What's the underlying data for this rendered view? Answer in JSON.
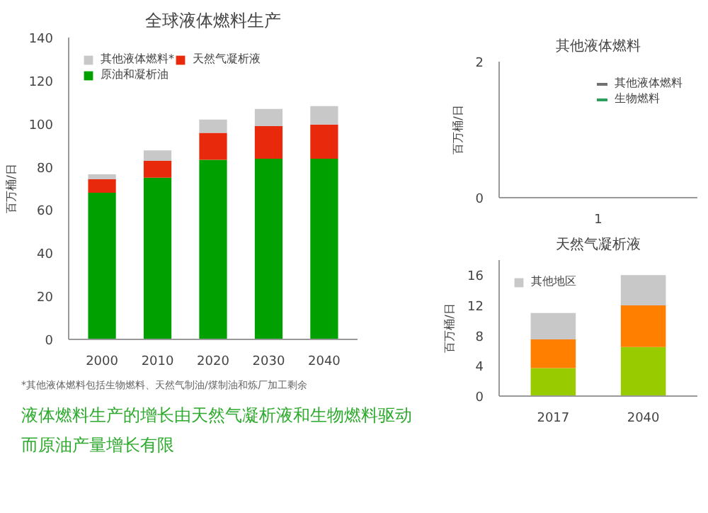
{
  "chart_data": [
    {
      "type": "bar",
      "stacked": true,
      "title": "全球液体燃料生产",
      "ylabel": "百万桶/日",
      "categories": [
        "2000",
        "2010",
        "2020",
        "2030",
        "2040"
      ],
      "series": [
        {
          "name": "原油和凝析油",
          "color": "#00a000",
          "values": [
            68,
            75,
            83.3,
            83.8,
            83.8
          ]
        },
        {
          "name": "天然气凝析液",
          "color": "#e8290b",
          "values": [
            6.3,
            7.8,
            12.5,
            15.1,
            15.9
          ]
        },
        {
          "name": "其他液体燃料*",
          "color": "#c8c8c8",
          "values": [
            2.3,
            4.9,
            6.2,
            8,
            8.5
          ]
        }
      ],
      "ylim": [
        0,
        140
      ],
      "yticks": [
        0,
        20,
        40,
        60,
        80,
        100,
        120,
        140
      ],
      "grid": false,
      "legend": "top left",
      "annotations": [
        "*其他液体燃料包括生物燃料、天然气制油/煤制油和炼厂加工剩余",
        "液体燃料生产的增长由天然气凝析液和生物燃料驱动",
        "而原油产量增长有限"
      ]
    },
    {
      "type": "line",
      "title": "其他液体燃料",
      "ylabel": "百万桶/日",
      "categories": [
        "1"
      ],
      "series": [
        {
          "name": "生物燃料",
          "color": "#2e9e5b",
          "values": [
            null
          ]
        },
        {
          "name": "其他液体燃料",
          "color": "#707070",
          "values": [
            null
          ]
        }
      ],
      "ylim": [
        0,
        2
      ],
      "yticks": [
        0,
        2
      ],
      "grid": false,
      "legend": "top right"
    },
    {
      "type": "bar",
      "stacked": true,
      "title": "天然气凝析液",
      "ylabel": "百万桶/日",
      "categories": [
        "2017",
        "2040"
      ],
      "series": [
        {
          "color": "#99cc00",
          "values": [
            3.7,
            6.5
          ]
        },
        {
          "color": "#ff7f00",
          "values": [
            3.8,
            5.5
          ]
        },
        {
          "name": "其他地区",
          "color": "#c8c8c8",
          "values": [
            3.5,
            4
          ]
        }
      ],
      "ylim": [
        0,
        18
      ],
      "yticks": [
        0,
        4,
        8,
        12,
        16
      ],
      "grid": false,
      "legend": "top left"
    }
  ]
}
